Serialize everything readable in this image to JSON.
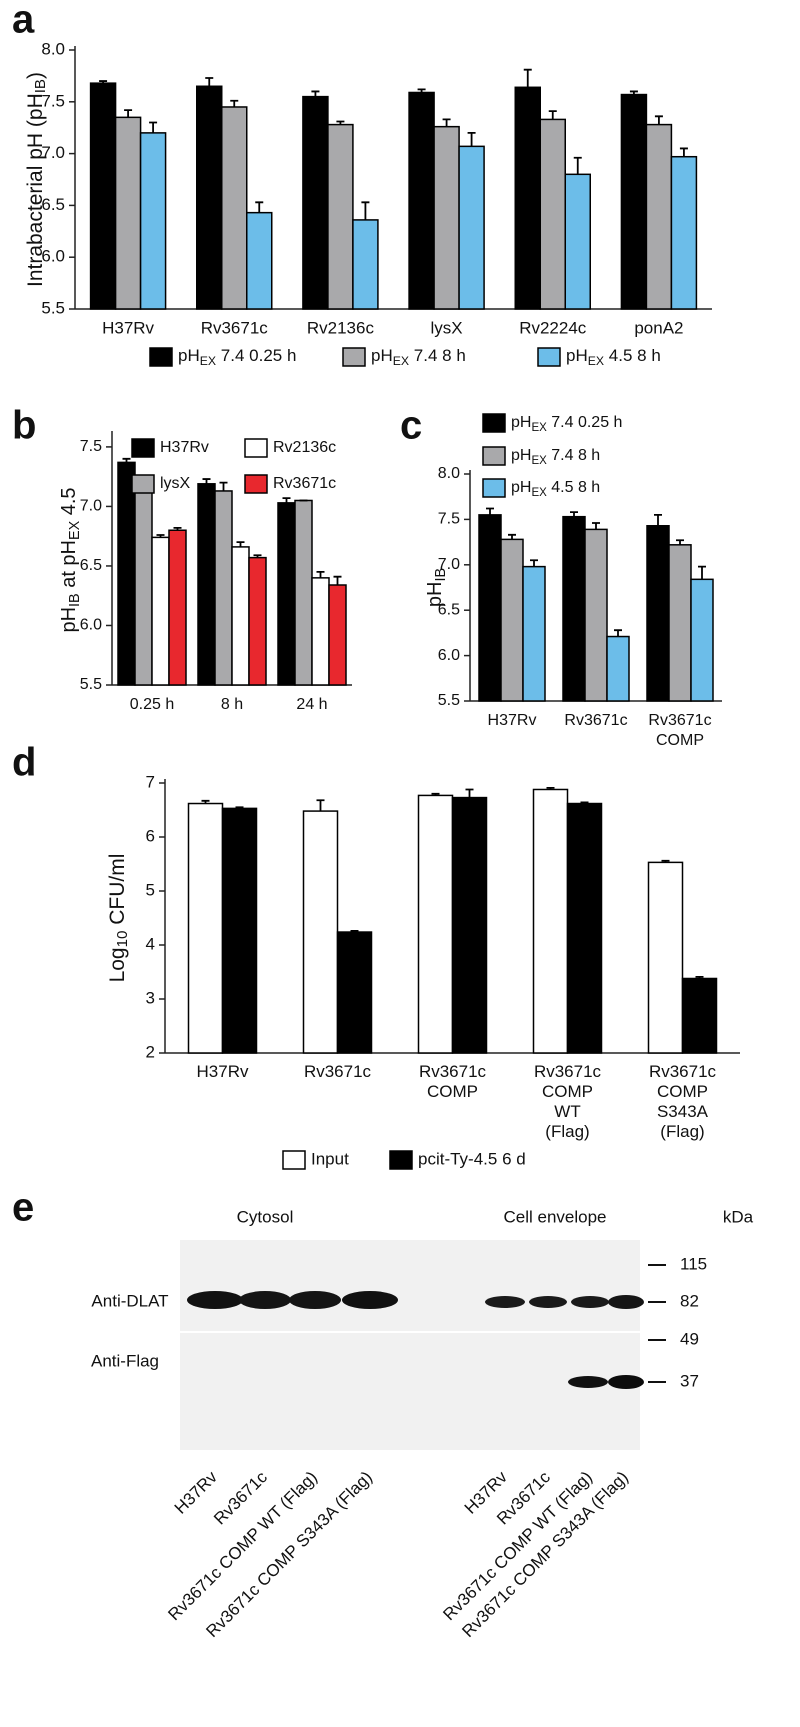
{
  "chart_data": [
    {
      "panel": "a",
      "type": "bar",
      "ylabel": [
        "Intrabacterial pH (pH",
        "IB",
        ")"
      ],
      "categories": [
        "H37Rv",
        "Rv3671c",
        "Rv2136c",
        "lysX",
        "Rv2224c",
        "ponA2"
      ],
      "series": [
        {
          "name": [
            "pH",
            "EX",
            " 7.4  0.25 h"
          ],
          "color": "#000000",
          "values": [
            7.68,
            7.65,
            7.55,
            7.59,
            7.64,
            7.57
          ],
          "errors": [
            0.02,
            0.08,
            0.05,
            0.03,
            0.17,
            0.03
          ]
        },
        {
          "name": [
            "pH",
            "EX",
            " 7.4  8 h"
          ],
          "color": "#a9a9ab",
          "values": [
            7.35,
            7.45,
            7.28,
            7.26,
            7.33,
            7.28
          ],
          "errors": [
            0.07,
            0.06,
            0.03,
            0.07,
            0.08,
            0.08
          ]
        },
        {
          "name": [
            "pH",
            "EX",
            " 4.5  8 h"
          ],
          "color": "#6cbde9",
          "values": [
            7.2,
            6.43,
            6.36,
            7.07,
            6.8,
            6.97
          ],
          "errors": [
            0.1,
            0.1,
            0.17,
            0.13,
            0.16,
            0.08
          ]
        }
      ],
      "edgecolor": "#000000",
      "ylim": [
        5.5,
        8.0
      ],
      "yticks": [
        5.5,
        {
          "value": 6,
          "label": "6.0"
        },
        6.5,
        {
          "value": 7,
          "label": "7.0"
        },
        7.5,
        {
          "value": 8,
          "label": "8.0"
        }
      ],
      "grid": false,
      "legend": "bottom"
    },
    {
      "panel": "b",
      "type": "bar",
      "ylabel": [
        "pH",
        "IB",
        " at pH",
        "EX",
        " 4.5"
      ],
      "categories": [
        "0.25 h",
        "8 h",
        "24 h"
      ],
      "series": [
        {
          "name": "H37Rv",
          "color": "#000000",
          "values": [
            7.37,
            7.19,
            7.03
          ],
          "errors": [
            0.03,
            0.04,
            0.04
          ]
        },
        {
          "name": "lysX",
          "color": "#a9a9ab",
          "values": [
            7.19,
            7.13,
            7.05
          ],
          "errors": [
            0.0,
            0.07,
            0.0
          ]
        },
        {
          "name": "Rv2136c",
          "color": "#ffffff",
          "values": [
            6.74,
            6.66,
            6.4
          ],
          "errors": [
            0.02,
            0.04,
            0.05
          ]
        },
        {
          "name": "Rv3671c",
          "color": "#e8282e",
          "values": [
            6.8,
            6.57,
            6.34
          ],
          "errors": [
            0.02,
            0.02,
            0.07
          ]
        }
      ],
      "edgecolor": "#000000",
      "ylim": [
        5.5,
        7.6
      ],
      "yticks": [
        5.5,
        {
          "value": 6,
          "label": "6.0"
        },
        6.5,
        {
          "value": 7,
          "label": "7.0"
        },
        7.5
      ],
      "grid": false,
      "legend": "upper"
    },
    {
      "panel": "c",
      "type": "bar",
      "ylabel": [
        "pH",
        "IB"
      ],
      "categories": [
        [
          "H37Rv"
        ],
        [
          "Rv3671c"
        ],
        [
          "Rv3671c",
          "COMP"
        ]
      ],
      "series": [
        {
          "name": [
            "pH",
            "EX",
            " 7.4  0.25 h"
          ],
          "color": "#000000",
          "values": [
            7.55,
            7.53,
            7.43
          ],
          "errors": [
            0.07,
            0.05,
            0.12
          ]
        },
        {
          "name": [
            "pH",
            "EX",
            " 7.4  8 h"
          ],
          "color": "#a9a9ab",
          "values": [
            7.28,
            7.39,
            7.22
          ],
          "errors": [
            0.05,
            0.07,
            0.05
          ]
        },
        {
          "name": [
            "pH",
            "EX",
            " 4.5  8 h"
          ],
          "color": "#6cbde9",
          "values": [
            6.98,
            6.21,
            6.84
          ],
          "errors": [
            0.07,
            0.07,
            0.14
          ]
        }
      ],
      "edgecolor": "#000000",
      "ylim": [
        5.5,
        8.0
      ],
      "yticks": [
        5.5,
        {
          "value": 6,
          "label": "6.0"
        },
        6.5,
        {
          "value": 7,
          "label": "7.0"
        },
        7.5,
        {
          "value": 8,
          "label": "8.0"
        }
      ],
      "grid": false,
      "legend": "top"
    },
    {
      "panel": "d",
      "type": "bar",
      "ylabel": [
        "Log",
        "10",
        " CFU/ml"
      ],
      "categories": [
        [
          "H37Rv"
        ],
        [
          "Rv3671c"
        ],
        [
          "Rv3671c",
          "COMP"
        ],
        [
          "Rv3671c",
          "COMP",
          "WT",
          "(Flag)"
        ],
        [
          "Rv3671c",
          "COMP",
          "S343A",
          "(Flag)"
        ]
      ],
      "series": [
        {
          "name": "Input",
          "color": "#ffffff",
          "values": [
            6.62,
            6.48,
            6.77,
            6.88,
            5.53
          ],
          "errors": [
            0.05,
            0.2,
            0.03,
            0.03,
            0.03
          ]
        },
        {
          "name": "pcit-Ty-4.5 6 d",
          "color": "#000000",
          "values": [
            6.53,
            4.24,
            6.73,
            6.62,
            3.38
          ],
          "errors": [
            0.02,
            0.02,
            0.15,
            0.02,
            0.03
          ]
        }
      ],
      "edgecolor": "#000000",
      "ylim": [
        2,
        7
      ],
      "yticks": [
        2,
        3,
        4,
        5,
        6,
        7
      ],
      "grid": false,
      "legend": "bottom"
    }
  ],
  "blot": {
    "panel": "e",
    "groups": [
      {
        "title": "Cytosol",
        "lanes": [
          "H37Rv",
          "Rv3671c",
          "Rv3671c COMP WT (Flag)",
          "Rv3671c COMP S343A (Flag)"
        ]
      },
      {
        "title": "Cell envelope",
        "lanes": [
          "H37Rv",
          "Rv3671c",
          "Rv3671c COMP WT (Flag)",
          "Rv3671c COMP S343A (Flag)"
        ]
      }
    ],
    "rows": [
      "Anti-DLAT",
      "Anti-Flag"
    ],
    "marker_unit": "kDa",
    "markers": [
      115,
      82,
      49,
      37
    ]
  }
}
